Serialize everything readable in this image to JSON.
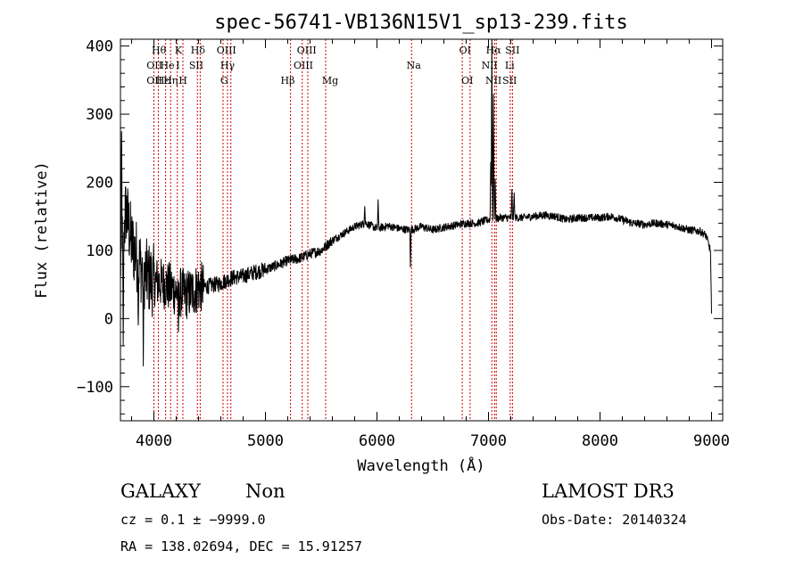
{
  "chart_data": {
    "type": "line",
    "title": "spec-56741-VB136N15V1_sp13-239.fits",
    "xlabel": "Wavelength (Å)",
    "ylabel": "Flux (relative)",
    "xlim": [
      3700,
      9100
    ],
    "ylim": [
      -150,
      410
    ],
    "xticks": [
      4000,
      5000,
      6000,
      7000,
      8000,
      9000
    ],
    "yticks": [
      -100,
      0,
      100,
      200,
      300,
      400
    ],
    "series": [
      {
        "name": "spectrum",
        "anchors": [
          [
            3700,
            80
          ],
          [
            3750,
            160
          ],
          [
            3800,
            110
          ],
          [
            3850,
            90
          ],
          [
            3900,
            70
          ],
          [
            3950,
            60
          ],
          [
            4000,
            55
          ],
          [
            4100,
            50
          ],
          [
            4200,
            40
          ],
          [
            4300,
            35
          ],
          [
            4400,
            45
          ],
          [
            4500,
            48
          ],
          [
            4600,
            52
          ],
          [
            4700,
            60
          ],
          [
            4800,
            62
          ],
          [
            4900,
            68
          ],
          [
            5000,
            72
          ],
          [
            5100,
            78
          ],
          [
            5200,
            85
          ],
          [
            5300,
            88
          ],
          [
            5400,
            95
          ],
          [
            5500,
            100
          ],
          [
            5600,
            115
          ],
          [
            5700,
            125
          ],
          [
            5800,
            135
          ],
          [
            5900,
            140
          ],
          [
            6000,
            132
          ],
          [
            6100,
            136
          ],
          [
            6200,
            132
          ],
          [
            6300,
            130
          ],
          [
            6400,
            135
          ],
          [
            6500,
            130
          ],
          [
            6600,
            134
          ],
          [
            6700,
            137
          ],
          [
            6800,
            140
          ],
          [
            6900,
            140
          ],
          [
            7000,
            145
          ],
          [
            7100,
            148
          ],
          [
            7200,
            148
          ],
          [
            7300,
            148
          ],
          [
            7400,
            150
          ],
          [
            7500,
            152
          ],
          [
            7600,
            150
          ],
          [
            7700,
            145
          ],
          [
            7800,
            148
          ],
          [
            7900,
            148
          ],
          [
            8000,
            148
          ],
          [
            8100,
            150
          ],
          [
            8200,
            145
          ],
          [
            8300,
            140
          ],
          [
            8400,
            138
          ],
          [
            8500,
            140
          ],
          [
            8600,
            138
          ],
          [
            8700,
            135
          ],
          [
            8800,
            130
          ],
          [
            8900,
            128
          ],
          [
            8950,
            122
          ],
          [
            8990,
            100
          ],
          [
            9000,
            5
          ]
        ],
        "features": [
          {
            "wavelength": 3710,
            "value": 275
          },
          {
            "wavelength": 3725,
            "value": -40
          },
          {
            "wavelength": 3860,
            "value": -10
          },
          {
            "wavelength": 3905,
            "value": -70
          },
          {
            "wavelength": 4220,
            "value": -20
          },
          {
            "wavelength": 5890,
            "value": 165
          },
          {
            "wavelength": 6010,
            "value": 175
          },
          {
            "wavelength": 6300,
            "value": 75
          },
          {
            "wavelength": 7020,
            "value": 230
          },
          {
            "wavelength": 7030,
            "value": 410
          },
          {
            "wavelength": 7045,
            "value": 330
          },
          {
            "wavelength": 7060,
            "value": 205
          },
          {
            "wavelength": 7210,
            "value": 190
          },
          {
            "wavelength": 7230,
            "value": 185
          }
        ]
      }
    ],
    "line_markers": [
      {
        "wavelength": 4000
      },
      {
        "wavelength": 4040
      },
      {
        "wavelength": 4105
      },
      {
        "wavelength": 4150
      },
      {
        "wavelength": 4210
      },
      {
        "wavelength": 4260
      },
      {
        "wavelength": 4390
      },
      {
        "wavelength": 4415
      },
      {
        "wavelength": 4620
      },
      {
        "wavelength": 4660
      },
      {
        "wavelength": 4690
      },
      {
        "wavelength": 5225
      },
      {
        "wavelength": 5330
      },
      {
        "wavelength": 5380
      },
      {
        "wavelength": 5540
      },
      {
        "wavelength": 6310
      },
      {
        "wavelength": 6765
      },
      {
        "wavelength": 6835
      },
      {
        "wavelength": 7030
      },
      {
        "wavelength": 7055
      },
      {
        "wavelength": 7070
      },
      {
        "wavelength": 7195
      },
      {
        "wavelength": 7215
      }
    ],
    "line_labels": [
      {
        "text": "Hθ",
        "wavelength": 4045,
        "row": 0
      },
      {
        "text": "K",
        "wavelength": 4220,
        "row": 0
      },
      {
        "text": "Hδ",
        "wavelength": 4395,
        "row": 0
      },
      {
        "text": "OIII",
        "wavelength": 4650,
        "row": 0
      },
      {
        "text": "OIII",
        "wavelength": 5370,
        "row": 0
      },
      {
        "text": "OI",
        "wavelength": 6790,
        "row": 0
      },
      {
        "text": "Hα",
        "wavelength": 7045,
        "row": 0
      },
      {
        "text": "SII",
        "wavelength": 7215,
        "row": 0
      },
      {
        "text": "OII",
        "wavelength": 4005,
        "row": 1
      },
      {
        "text": "He",
        "wavelength": 4120,
        "row": 1
      },
      {
        "text": "I",
        "wavelength": 4215,
        "row": 1
      },
      {
        "text": "SII",
        "wavelength": 4380,
        "row": 1
      },
      {
        "text": "Hγ",
        "wavelength": 4660,
        "row": 1
      },
      {
        "text": "OIII",
        "wavelength": 5340,
        "row": 1
      },
      {
        "text": "Na",
        "wavelength": 6330,
        "row": 1
      },
      {
        "text": "NII",
        "wavelength": 7010,
        "row": 1
      },
      {
        "text": "Li",
        "wavelength": 7190,
        "row": 1
      },
      {
        "text": "OII",
        "wavelength": 4005,
        "row": 2
      },
      {
        "text": "Hε",
        "wavelength": 4080,
        "row": 2
      },
      {
        "text": "Hη",
        "wavelength": 4150,
        "row": 2
      },
      {
        "text": "H",
        "wavelength": 4260,
        "row": 2
      },
      {
        "text": "G",
        "wavelength": 4630,
        "row": 2
      },
      {
        "text": "Hβ",
        "wavelength": 5200,
        "row": 2
      },
      {
        "text": "Mg",
        "wavelength": 5580,
        "row": 2
      },
      {
        "text": "OI",
        "wavelength": 6810,
        "row": 2
      },
      {
        "text": "NII",
        "wavelength": 7045,
        "row": 2
      },
      {
        "text": "SII",
        "wavelength": 7190,
        "row": 2
      }
    ]
  },
  "info": {
    "class_label": "GALAXY",
    "subclass": "Non",
    "survey": "LAMOST DR3",
    "cz": "cz = 0.1 ± −9999.0",
    "obs_date": "Obs-Date: 20140324",
    "radec": "RA = 138.02694, DEC =  15.91257"
  },
  "colors": {
    "spectrum": "#000000",
    "marker": "#cc0000",
    "axis": "#000000"
  }
}
